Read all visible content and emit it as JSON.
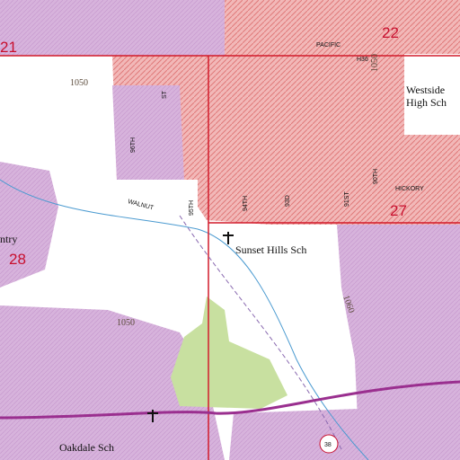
{
  "section_numbers": [
    "21",
    "22",
    "27",
    "28"
  ],
  "streets": [
    "PACIFIC",
    "H36",
    "HICKORY",
    "WALNUT",
    "96TH",
    "95TH",
    "94TH",
    "93D",
    "91ST",
    "90TH",
    "ST"
  ],
  "places": [
    "Westside",
    "High Sch",
    "Sunset Hills Sch",
    "Oakdale Sch",
    "ntry"
  ],
  "elevations": [
    "1050",
    "1050",
    "1060",
    "1050"
  ],
  "route": "38"
}
